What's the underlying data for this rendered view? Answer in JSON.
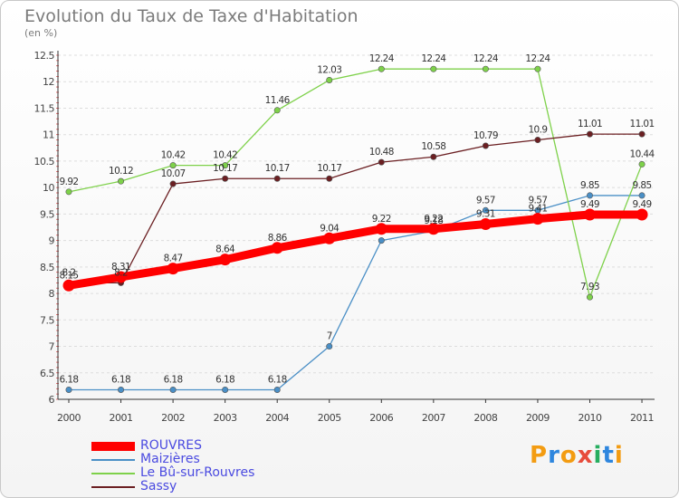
{
  "header": {
    "title": "Evolution du Taux de Taxe d'Habitation",
    "subtitle": "(en %)"
  },
  "logo": {
    "text": "Proxiti",
    "letter_colors": [
      "#f39c12",
      "#2e86de",
      "#f39c12",
      "#e74c3c",
      "#27ae60",
      "#2e86de",
      "#f39c12"
    ]
  },
  "chart_data": {
    "type": "line",
    "title": "Evolution du Taux de Taxe d'Habitation",
    "ylabel": "(en %)",
    "xlabel": "",
    "x": [
      "2000",
      "2001",
      "2002",
      "2003",
      "2004",
      "2005",
      "2006",
      "2007",
      "2008",
      "2009",
      "2010",
      "2011"
    ],
    "ylim": [
      6,
      12.5
    ],
    "yticks": [
      "6",
      "6.5",
      "7",
      "7.5",
      "8",
      "8.5",
      "9",
      "9.5",
      "10",
      "10.5",
      "11",
      "11.5",
      "12",
      "12.5"
    ],
    "grid": "horizontal",
    "legend_position": "bottom-left",
    "series": [
      {
        "name": "ROUVRES",
        "color": "#ff0000",
        "values": [
          8.15,
          8.31,
          8.47,
          8.64,
          8.86,
          9.04,
          9.22,
          9.22,
          9.31,
          9.41,
          9.49,
          9.49
        ],
        "labels": [
          "8.15",
          "8.31",
          "8.47",
          "8.64",
          "8.86",
          "9.04",
          "9.22",
          "9.22",
          "9.31",
          "9.41",
          "9.49",
          "9.49"
        ]
      },
      {
        "name": "Maizières",
        "color": "#4a8fc6",
        "values": [
          6.18,
          6.18,
          6.18,
          6.18,
          6.18,
          7,
          9,
          9.18,
          9.57,
          9.57,
          9.85,
          9.85
        ],
        "labels": [
          "6.18",
          "6.18",
          "6.18",
          "6.18",
          "6.18",
          "7",
          "",
          "9.18",
          "9.57",
          "9.57",
          "9.85",
          "9.85"
        ]
      },
      {
        "name": "Le Bû-sur-Rouvres",
        "color": "#7ed14a",
        "values": [
          9.92,
          10.12,
          10.42,
          10.42,
          11.46,
          12.03,
          12.24,
          12.24,
          12.24,
          12.24,
          7.93,
          10.44
        ],
        "labels": [
          "9.92",
          "10.12",
          "10.42",
          "10.42",
          "11.46",
          "12.03",
          "12.24",
          "12.24",
          "12.24",
          "12.24",
          "7.93",
          "10.44"
        ]
      },
      {
        "name": "Sassy",
        "color": "#6b1f22",
        "values": [
          8.2,
          8.2,
          10.07,
          10.17,
          10.17,
          10.17,
          10.48,
          10.58,
          10.79,
          10.9,
          11.01,
          11.01
        ],
        "labels": [
          "8.2",
          "8.2",
          "10.07",
          "10.17",
          "10.17",
          "10.17",
          "10.48",
          "10.58",
          "10.79",
          "10.9",
          "11.01",
          "11.01"
        ]
      }
    ]
  }
}
